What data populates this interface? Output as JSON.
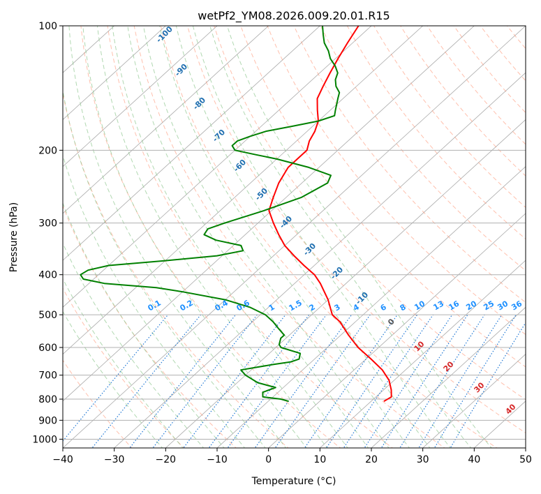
{
  "chart_data": {
    "type": "line",
    "diagram": "skew-T log-P",
    "title": "wetPf2_YM08.2026.009.20.01.R15",
    "xlabel": "Temperature (°C)",
    "ylabel": "Pressure (hPa)",
    "xlim": [
      -40,
      50
    ],
    "ylim": [
      1050,
      100
    ],
    "x_ticks": [
      -40,
      -30,
      -20,
      -10,
      0,
      10,
      20,
      30,
      40,
      50
    ],
    "x_tick_labels": [
      "−40",
      "−30",
      "−20",
      "−10",
      "0",
      "10",
      "20",
      "30",
      "40",
      "50"
    ],
    "y_ticks": [
      100,
      200,
      300,
      400,
      500,
      600,
      700,
      800,
      900,
      1000
    ],
    "y_tick_labels": [
      "100",
      "200",
      "300",
      "400",
      "500",
      "600",
      "700",
      "800",
      "900",
      "1000"
    ],
    "colors": {
      "temperature": "#ff0000",
      "dewpoint": "#008000",
      "isotherm": "#aaaaaa",
      "dry_adiabat": "#ff8c69",
      "moist_adiabat": "#90c890",
      "mixing_ratio": "#1f77d4",
      "mixing_label": "#1e90ff",
      "moist_label": "#1f6fb0",
      "dry_label": "#d62728"
    },
    "series": [
      {
        "name": "temperature",
        "pressure": [
          810,
          790,
          760,
          720,
          680,
          640,
          600,
          560,
          520,
          500,
          460,
          420,
          400,
          380,
          360,
          340,
          320,
          300,
          280,
          260,
          240,
          220,
          200,
          190,
          180,
          170,
          160,
          150,
          140,
          130,
          120,
          110,
          100
        ],
        "temp": [
          12.5,
          13.0,
          11.5,
          9.0,
          5.5,
          1.0,
          -4.0,
          -8.5,
          -13.0,
          -16.0,
          -20.0,
          -25.0,
          -28.0,
          -32.0,
          -36.0,
          -40.0,
          -43.5,
          -47.0,
          -50.5,
          -52.5,
          -54.5,
          -56.0,
          -56.0,
          -57.5,
          -58.5,
          -60.0,
          -62.5,
          -65.0,
          -66.5,
          -68.0,
          -69.5,
          -71.0,
          -72.5
        ]
      },
      {
        "name": "dewpoint",
        "pressure": [
          810,
          800,
          790,
          770,
          750,
          730,
          700,
          680,
          660,
          650,
          640,
          620,
          600,
          590,
          570,
          560,
          540,
          520,
          500,
          480,
          460,
          440,
          430,
          420,
          410,
          400,
          390,
          380,
          370,
          360,
          350,
          340,
          330,
          320,
          310,
          300,
          280,
          260,
          240,
          230,
          220,
          210,
          205,
          200,
          195,
          190,
          185,
          180,
          175,
          170,
          165,
          160,
          150,
          145,
          140,
          135,
          130,
          125,
          120,
          115,
          110,
          105,
          100
        ],
        "dewp": [
          -6.0,
          -8.0,
          -12.0,
          -13.0,
          -11.5,
          -16.0,
          -20.0,
          -22.0,
          -17.0,
          -14.0,
          -13.0,
          -14.0,
          -19.0,
          -20.0,
          -21.0,
          -21.0,
          -23.5,
          -26.0,
          -29.0,
          -33.5,
          -40.0,
          -50.0,
          -56.0,
          -67.0,
          -72.0,
          -73.5,
          -73.0,
          -70.0,
          -60.0,
          -51.0,
          -47.0,
          -48.5,
          -54.5,
          -58.0,
          -58.5,
          -56.5,
          -51.5,
          -47.0,
          -45.0,
          -46.0,
          -52.0,
          -60.0,
          -65.0,
          -70.0,
          -71.5,
          -71.5,
          -70.0,
          -68.0,
          -64.0,
          -60.0,
          -58.0,
          -59.0,
          -61.0,
          -62.0,
          -64.0,
          -65.5,
          -66.5,
          -68.5,
          -71.0,
          -73.0,
          -75.5,
          -77.5,
          -79.5
        ]
      }
    ],
    "moist_adiabat_labels": [
      "-100",
      "-90",
      "-80",
      "-70",
      "-60",
      "-50",
      "-40",
      "-30",
      "-20",
      "-10",
      "0"
    ],
    "mixing_ratio_labels": [
      "0.1",
      "0.2",
      "0.4",
      "0.6",
      "1",
      "1.5",
      "2",
      "3",
      "4",
      "6",
      "8",
      "10",
      "13",
      "16",
      "20",
      "25",
      "30",
      "36"
    ],
    "dry_adiabat_labels": [
      "10",
      "20",
      "30",
      "40"
    ]
  }
}
